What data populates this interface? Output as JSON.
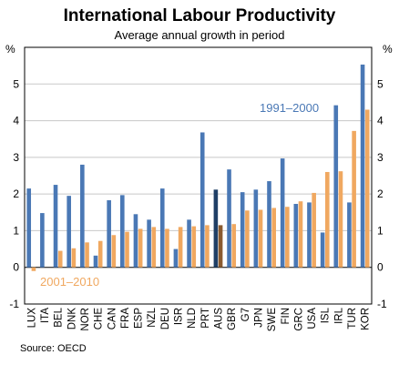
{
  "chart_data": {
    "type": "bar",
    "title": "International Labour Productivity",
    "subtitle": "Average annual growth in period",
    "y_unit_left": "%",
    "y_unit_right": "%",
    "ylim": [
      -1,
      6
    ],
    "yticks": [
      "-1",
      "0",
      "1",
      "2",
      "3",
      "4",
      "5"
    ],
    "grid": true,
    "categories": [
      "LUX",
      "ITA",
      "BEL",
      "DNK",
      "NOR",
      "CHE",
      "CAN",
      "FRA",
      "ESP",
      "NZL",
      "DEU",
      "ISR",
      "NLD",
      "PRT",
      "AUS",
      "GBR",
      "G7",
      "JPN",
      "SWE",
      "FIN",
      "GRC",
      "USA",
      "ISL",
      "IRL",
      "TUR",
      "KOR"
    ],
    "highlight_category": "AUS",
    "series": [
      {
        "name": "1991–2000",
        "color": "#4a78b5",
        "highlight_color": "#1f3f66",
        "values": [
          2.15,
          1.48,
          2.25,
          1.95,
          2.8,
          0.32,
          1.83,
          1.97,
          1.45,
          1.3,
          2.15,
          0.5,
          1.3,
          3.68,
          2.12,
          2.67,
          2.05,
          2.12,
          2.35,
          2.97,
          1.73,
          1.77,
          0.95,
          4.42,
          1.77,
          5.53
        ]
      },
      {
        "name": "2001–2010",
        "color": "#f0a860",
        "highlight_color": "#8a5a2e",
        "values": [
          -0.1,
          0.0,
          0.45,
          0.52,
          0.68,
          0.72,
          0.88,
          0.97,
          1.05,
          1.1,
          1.05,
          1.1,
          1.12,
          1.15,
          1.15,
          1.18,
          1.55,
          1.57,
          1.62,
          1.65,
          1.8,
          2.03,
          2.6,
          2.62,
          3.72,
          4.3
        ]
      }
    ],
    "annotations": [
      "1991–2000",
      "2001–2010"
    ],
    "source": "Source: OECD"
  }
}
